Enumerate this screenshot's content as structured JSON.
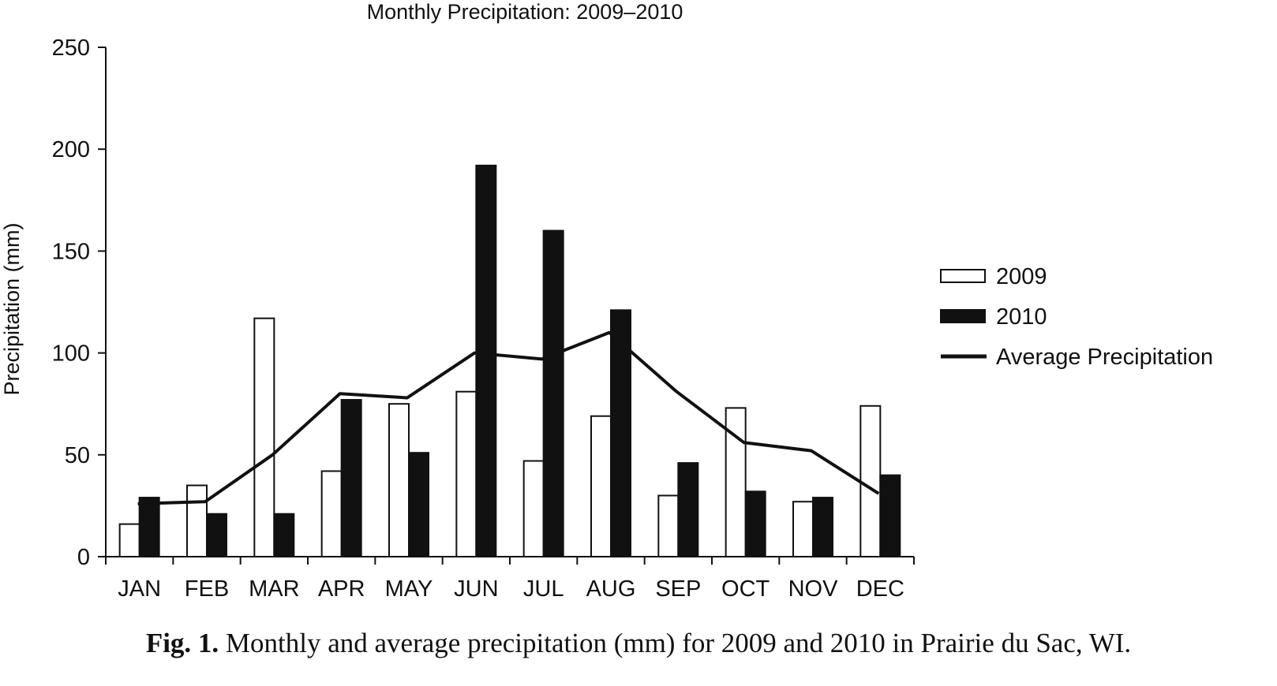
{
  "chart_data": {
    "type": "bar",
    "title": "Monthly Precipitation: 2009–2010",
    "xlabel": "",
    "ylabel": "Precipitation (mm)",
    "ylim": [
      0,
      250
    ],
    "yticks": [
      "0",
      "50",
      "100",
      "150",
      "200",
      "250"
    ],
    "categories": [
      "JAN",
      "FEB",
      "MAR",
      "APR",
      "MAY",
      "JUN",
      "JUL",
      "AUG",
      "SEP",
      "OCT",
      "NOV",
      "DEC"
    ],
    "series": [
      {
        "name": "2009",
        "kind": "bar",
        "fill": "#ffffff",
        "values": [
          16,
          35,
          117,
          42,
          75,
          81,
          47,
          69,
          30,
          73,
          27,
          74
        ]
      },
      {
        "name": "2010",
        "kind": "bar",
        "fill": "#111111",
        "values": [
          29,
          21,
          21,
          77,
          51,
          192,
          160,
          121,
          46,
          32,
          29,
          40
        ]
      },
      {
        "name": "Average Precipitation",
        "kind": "line",
        "color": "#111111",
        "values": [
          26,
          27,
          50,
          80,
          78,
          100,
          97,
          110,
          81,
          56,
          52,
          31
        ]
      }
    ],
    "legend_position": "right",
    "grid": false
  },
  "caption": {
    "label": "Fig. 1.",
    "text": "Monthly and average precipitation (mm) for 2009 and 2010 in Prairie du Sac, WI."
  }
}
